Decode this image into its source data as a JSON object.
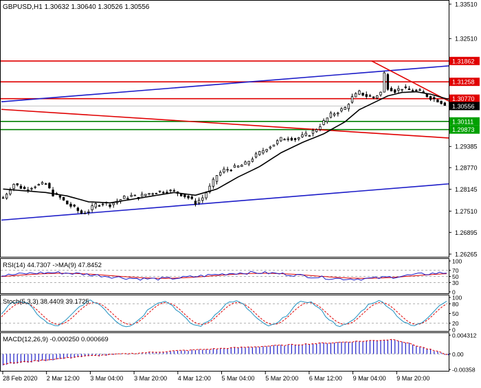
{
  "colors": {
    "background": "#ffffff",
    "grid": "#c8c8c8",
    "candle": "#000000",
    "ma": "#000000",
    "red_line": "#e00000",
    "blue_line": "#1c1cc8",
    "green_line": "#008000",
    "label_red_bg": "#e00000",
    "label_green_bg": "#00a000",
    "rsi_line": "#1c1cc8",
    "rsi_ma": "#e00000",
    "stoch_main": "#1e90c0",
    "stoch_signal": "#e00000",
    "macd_hist": "#1c1cc8",
    "macd_signal": "#e00000"
  },
  "chart_data": [
    {
      "type": "candlestick",
      "title": "GBPUSD,H1  1.30632 1.30640 1.30526 1.30556",
      "ylim": [
        1.26265,
        1.3351
      ],
      "y_ticks": [
        "1.33510",
        "1.32510",
        "1.31862",
        "1.31258",
        "1.30770",
        "1.30556",
        "1.30111",
        "1.29873",
        "1.29385",
        "1.28770",
        "1.28145",
        "1.27510",
        "1.26895",
        "1.26265"
      ],
      "x_ticks": [
        "28 Feb 2020",
        "2 Mar 12:00",
        "3 Mar 04:00",
        "3 Mar 20:00",
        "4 Mar 12:00",
        "5 Mar 04:00",
        "5 Mar 20:00",
        "6 Mar 12:00",
        "9 Mar 04:00",
        "9 Mar 20:00"
      ],
      "close_path": [
        [
          0,
          1.279
        ],
        [
          3,
          1.283
        ],
        [
          6,
          1.2815
        ],
        [
          9,
          1.2825
        ],
        [
          12,
          1.283
        ],
        [
          14,
          1.28
        ],
        [
          16,
          1.279
        ],
        [
          18,
          1.2772
        ],
        [
          20,
          1.276
        ],
        [
          22,
          1.2745
        ],
        [
          24,
          1.2752
        ],
        [
          26,
          1.277
        ],
        [
          28,
          1.2775
        ],
        [
          30,
          1.277
        ],
        [
          32,
          1.278
        ],
        [
          34,
          1.279
        ],
        [
          36,
          1.2795
        ],
        [
          38,
          1.2792
        ],
        [
          40,
          1.28
        ],
        [
          42,
          1.2805
        ],
        [
          44,
          1.2808
        ],
        [
          46,
          1.281
        ],
        [
          48,
          1.2808
        ],
        [
          50,
          1.28
        ],
        [
          52,
          1.279
        ],
        [
          54,
          1.2775
        ],
        [
          56,
          1.279
        ],
        [
          58,
          1.282
        ],
        [
          60,
          1.2855
        ],
        [
          62,
          1.287
        ],
        [
          64,
          1.2875
        ],
        [
          66,
          1.288
        ],
        [
          68,
          1.2888
        ],
        [
          70,
          1.2905
        ],
        [
          72,
          1.292
        ],
        [
          74,
          1.2935
        ],
        [
          76,
          1.2945
        ],
        [
          78,
          1.296
        ],
        [
          80,
          1.2965
        ],
        [
          82,
          1.296
        ],
        [
          84,
          1.2968
        ],
        [
          86,
          1.2975
        ],
        [
          88,
          1.299
        ],
        [
          90,
          1.301
        ],
        [
          92,
          1.303
        ],
        [
          94,
          1.304
        ],
        [
          96,
          1.305
        ],
        [
          98,
          1.308
        ],
        [
          100,
          1.3095
        ],
        [
          102,
          1.3085
        ],
        [
          104,
          1.308
        ],
        [
          106,
          1.3095
        ],
        [
          107,
          1.315
        ],
        [
          108,
          1.311
        ],
        [
          110,
          1.31
        ],
        [
          112,
          1.3108
        ],
        [
          114,
          1.3102
        ],
        [
          116,
          1.31
        ],
        [
          118,
          1.3092
        ],
        [
          120,
          1.308
        ],
        [
          122,
          1.3072
        ],
        [
          124,
          1.3062
        ],
        [
          125,
          1.3056
        ]
      ],
      "ma_path": [
        [
          0,
          1.2815
        ],
        [
          6,
          1.281
        ],
        [
          12,
          1.2805
        ],
        [
          18,
          1.2795
        ],
        [
          24,
          1.2778
        ],
        [
          30,
          1.2775
        ],
        [
          36,
          1.2785
        ],
        [
          42,
          1.2795
        ],
        [
          48,
          1.2805
        ],
        [
          54,
          1.2797
        ],
        [
          60,
          1.2815
        ],
        [
          66,
          1.285
        ],
        [
          72,
          1.288
        ],
        [
          78,
          1.292
        ],
        [
          84,
          1.295
        ],
        [
          90,
          1.2975
        ],
        [
          96,
          1.301
        ],
        [
          100,
          1.3045
        ],
        [
          104,
          1.3065
        ],
        [
          108,
          1.3085
        ],
        [
          112,
          1.3095
        ],
        [
          116,
          1.3097
        ],
        [
          120,
          1.309
        ],
        [
          125,
          1.3075
        ]
      ],
      "levels": [
        {
          "value": 1.31862,
          "label": "1.31862",
          "color": "#e00000"
        },
        {
          "value": 1.31258,
          "label": "1.31258",
          "color": "#e00000"
        },
        {
          "value": 1.3077,
          "label": "1.30770",
          "color": "#e00000"
        },
        {
          "value": 1.30111,
          "label": "1.30111",
          "color": "#00a000"
        },
        {
          "value": 1.29873,
          "label": "1.29873",
          "color": "#00a000"
        }
      ],
      "current_price": "1.30556",
      "trendlines": [
        {
          "name": "channel-upper",
          "color": "#1c1cc8",
          "from": [
            0,
            1.3068
          ],
          "to": [
            125,
            1.3172
          ]
        },
        {
          "name": "channel-lower",
          "color": "#1c1cc8",
          "from": [
            0,
            1.2725
          ],
          "to": [
            125,
            1.283
          ]
        },
        {
          "name": "red-diagonal-lower",
          "color": "#e00000",
          "from": [
            0,
            1.3046
          ],
          "to": [
            125,
            1.2963
          ]
        },
        {
          "name": "red-diagonal-upper",
          "color": "#e00000",
          "from": [
            104,
            1.3186
          ],
          "to": [
            125,
            1.307
          ]
        }
      ]
    },
    {
      "type": "line",
      "title": "RSI(14) 44.7307  ->MA(9) 47.8452",
      "ylim": [
        0,
        100
      ],
      "y_ticks": [
        "100",
        "70",
        "50",
        "30",
        "0"
      ],
      "levels": [
        70,
        50,
        30
      ]
    },
    {
      "type": "line",
      "title": "Stoch(5,3,3) 38.4409 39.1725",
      "ylim": [
        0,
        100
      ],
      "y_ticks": [
        "100",
        "80",
        "50",
        "20",
        "0"
      ],
      "levels": [
        80,
        20
      ]
    },
    {
      "type": "bar",
      "title": "MACD(12,26,9) -0.000250 0.000669",
      "ylim": [
        -0.00358,
        0.00432
      ],
      "y_ticks": [
        "0.004312",
        "0.00",
        "-0.00358"
      ]
    }
  ]
}
